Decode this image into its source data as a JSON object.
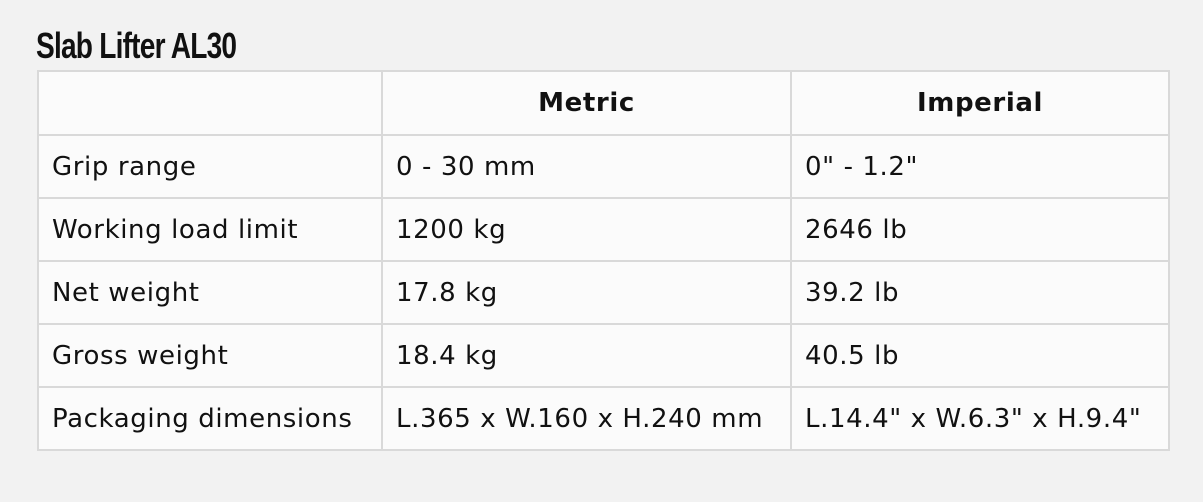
{
  "title": "Slab Lifter AL30",
  "table": {
    "headers": [
      "",
      "Metric",
      "Imperial"
    ],
    "rows": [
      [
        "Grip range",
        "0 - 30 mm",
        "0\" - 1.2\""
      ],
      [
        "Working load limit",
        "1200 kg",
        "2646 lb"
      ],
      [
        "Net weight",
        "17.8 kg",
        "39.2 lb"
      ],
      [
        "Gross weight",
        "18.4 kg",
        "40.5 lb"
      ],
      [
        "Packaging dimensions",
        "L.365 x W.160 x H.240 mm",
        "L.14.4\" x W.6.3\" x H.9.4\""
      ]
    ]
  }
}
